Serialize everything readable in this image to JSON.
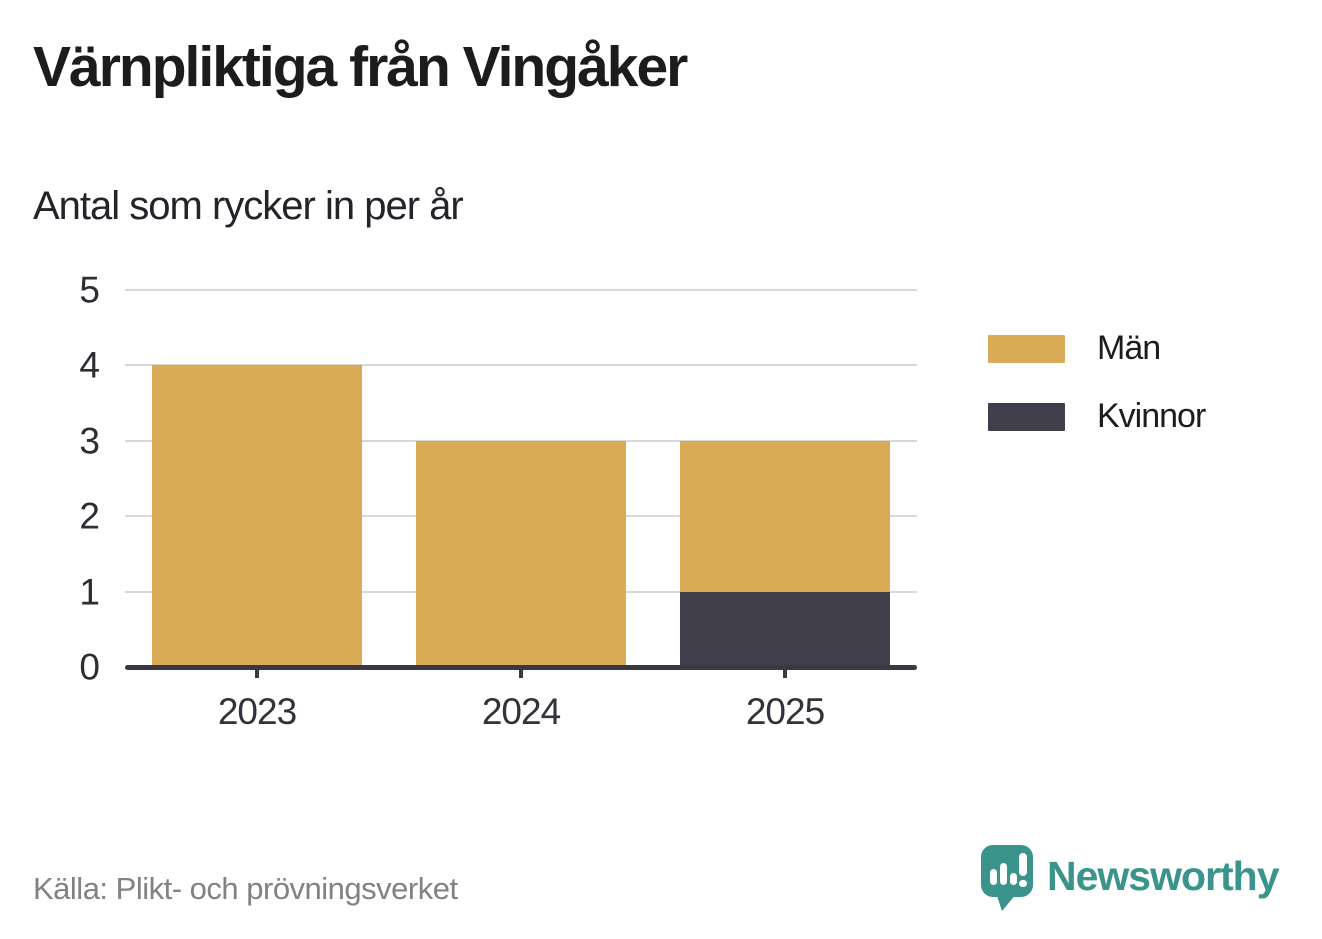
{
  "header": {
    "title": "Värnpliktiga från Vingåker",
    "subtitle": "Antal som rycker in per år"
  },
  "chart_data": {
    "type": "bar",
    "stacked": true,
    "title": "Värnpliktiga från Vingåker",
    "subtitle": "Antal som rycker in per år",
    "categories": [
      "2023",
      "2024",
      "2025"
    ],
    "series": [
      {
        "name": "Män",
        "color": "#d9ab57",
        "values": [
          4,
          3,
          2
        ]
      },
      {
        "name": "Kvinnor",
        "color": "#423f4d",
        "values": [
          0,
          0,
          1
        ]
      }
    ],
    "stack_totals": [
      4,
      3,
      3
    ],
    "xlabel": "",
    "ylabel": "",
    "ylim": [
      0,
      5
    ],
    "yticks": [
      0,
      1,
      2,
      3,
      4,
      5
    ],
    "grid": true,
    "legend_position": "right"
  },
  "legend": {
    "items": [
      {
        "label": "Män",
        "color": "#d9ab57"
      },
      {
        "label": "Kvinnor",
        "color": "#423f4d"
      }
    ]
  },
  "footer": {
    "source": "Källa: Plikt- och prövningsverket",
    "brand": "Newsworthy",
    "brand_color": "#3a948c",
    "logo_icon": "newsworthy-speech-bubble-bar-chart-icon"
  },
  "colors": {
    "grid": "#d8d8d8",
    "axis": "#3a3943",
    "tick_text": "#2e2d33",
    "title_text": "#1d1c1a",
    "muted_text": "#828282"
  }
}
